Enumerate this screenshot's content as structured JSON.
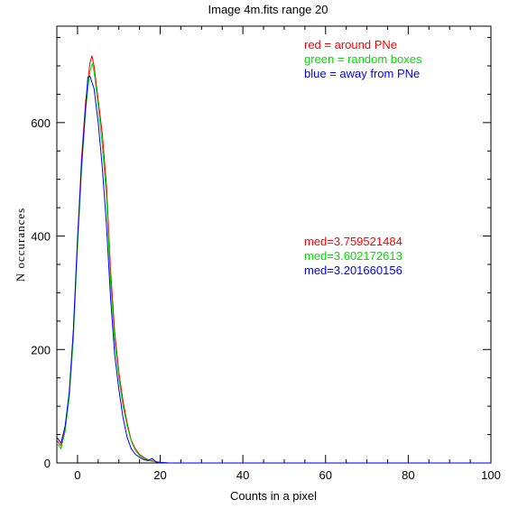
{
  "chart_data": {
    "type": "line",
    "title": "Image 4m.fits   range 20",
    "xlabel": "Counts in a pixel",
    "ylabel": "N occurances",
    "xlim": [
      -5,
      100
    ],
    "ylim": [
      0,
      770
    ],
    "x_major_ticks": [
      0,
      20,
      40,
      60,
      80,
      100
    ],
    "x_tick_labels": [
      "0",
      "20",
      "40",
      "60",
      "80",
      "100"
    ],
    "y_major_ticks": [
      0,
      200,
      400,
      600
    ],
    "y_tick_labels": [
      "0",
      "200",
      "400",
      "600"
    ],
    "legend": [
      {
        "text": "red = around PNe",
        "color": "#ff0000"
      },
      {
        "text": "green = random boxes",
        "color": "#00dd00"
      },
      {
        "text": "blue = away from PNe",
        "color": "#0000ff"
      }
    ],
    "annotations": [
      {
        "text": "med=3.759521484",
        "color": "#ff0000"
      },
      {
        "text": "med=3.602172613",
        "color": "#00dd00"
      },
      {
        "text": "med=3.201660156",
        "color": "#0000ff"
      }
    ],
    "series": [
      {
        "color": "#ff0000",
        "points": [
          [
            -5,
            40
          ],
          [
            -4,
            30
          ],
          [
            -3,
            60
          ],
          [
            -2,
            120
          ],
          [
            -1,
            230
          ],
          [
            0,
            390
          ],
          [
            1,
            540
          ],
          [
            2,
            640
          ],
          [
            3,
            705
          ],
          [
            3.5,
            718
          ],
          [
            4,
            700
          ],
          [
            5,
            640
          ],
          [
            6,
            580
          ],
          [
            7,
            490
          ],
          [
            8,
            340
          ],
          [
            9,
            230
          ],
          [
            10,
            160
          ],
          [
            11,
            110
          ],
          [
            12,
            70
          ],
          [
            13,
            40
          ],
          [
            14,
            25
          ],
          [
            15,
            15
          ],
          [
            16,
            10
          ],
          [
            17,
            6
          ],
          [
            18,
            4
          ],
          [
            19,
            2
          ],
          [
            20,
            1
          ],
          [
            22,
            0
          ],
          [
            100,
            0
          ]
        ]
      },
      {
        "color": "#00dd00",
        "points": [
          [
            -5,
            35
          ],
          [
            -4,
            25
          ],
          [
            -3,
            55
          ],
          [
            -2,
            115
          ],
          [
            -1,
            220
          ],
          [
            0,
            380
          ],
          [
            1,
            520
          ],
          [
            2,
            625
          ],
          [
            3,
            690
          ],
          [
            3.6,
            705
          ],
          [
            4,
            690
          ],
          [
            5,
            630
          ],
          [
            6,
            560
          ],
          [
            7,
            470
          ],
          [
            8,
            320
          ],
          [
            9,
            215
          ],
          [
            10,
            150
          ],
          [
            11,
            100
          ],
          [
            12,
            65
          ],
          [
            13,
            38
          ],
          [
            14,
            22
          ],
          [
            15,
            13
          ],
          [
            16,
            8
          ],
          [
            17,
            5
          ],
          [
            18,
            3
          ],
          [
            19,
            2
          ],
          [
            20,
            1
          ],
          [
            22,
            0
          ],
          [
            100,
            0
          ]
        ]
      },
      {
        "color": "#0000ff",
        "points": [
          [
            -5,
            45
          ],
          [
            -4,
            35
          ],
          [
            -3,
            65
          ],
          [
            -2,
            125
          ],
          [
            -1,
            235
          ],
          [
            0,
            395
          ],
          [
            1,
            530
          ],
          [
            2,
            630
          ],
          [
            2.5,
            680
          ],
          [
            3,
            682
          ],
          [
            4,
            660
          ],
          [
            5,
            600
          ],
          [
            6,
            520
          ],
          [
            7,
            420
          ],
          [
            8,
            290
          ],
          [
            9,
            190
          ],
          [
            10,
            130
          ],
          [
            11,
            80
          ],
          [
            12,
            45
          ],
          [
            13,
            25
          ],
          [
            14,
            15
          ],
          [
            15,
            10
          ],
          [
            16,
            6
          ],
          [
            17,
            4
          ],
          [
            18,
            8
          ],
          [
            19,
            2
          ],
          [
            20,
            1
          ],
          [
            22,
            0
          ],
          [
            100,
            0
          ]
        ]
      }
    ]
  }
}
